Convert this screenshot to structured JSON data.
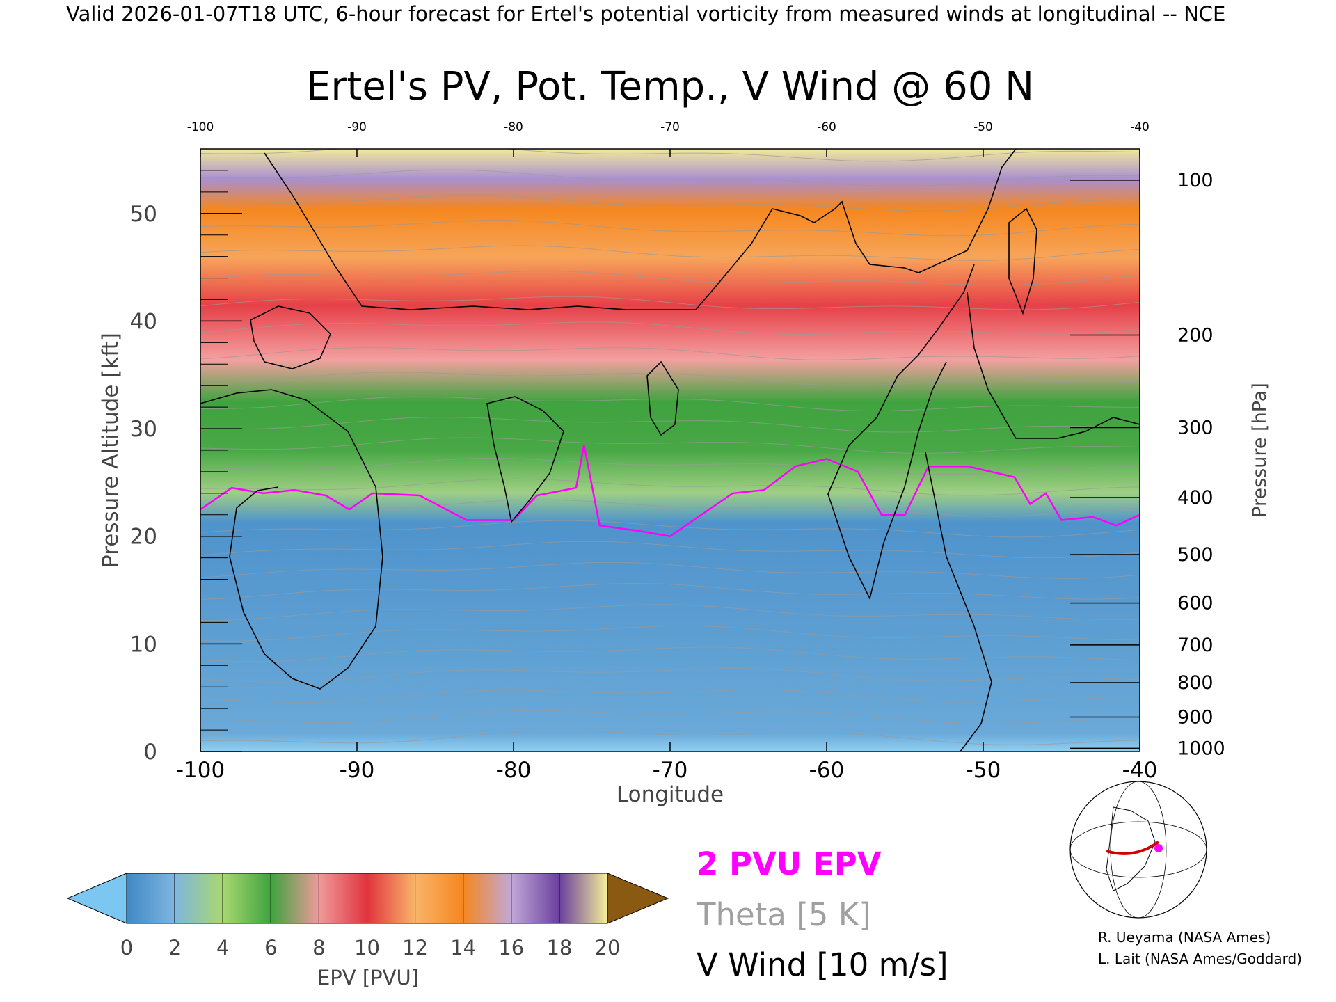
{
  "header": {
    "valid_line": "Valid 2026-01-07T18 UTC, 6-hour forecast for Ertel's potential vorticity from measured winds at longitudinal -- NCE"
  },
  "chart_data": {
    "type": "heatmap",
    "title": "Ertel's PV, Pot. Temp., V Wind @ 60 N",
    "xlabel": "Longitude",
    "ylabel": "Pressure Altitude [kft]",
    "ylabel_right": "Pressure [hPa]",
    "xlim": [
      -100,
      -40
    ],
    "ylim": [
      0,
      56
    ],
    "x_ticks": [
      "-100",
      "-90",
      "-80",
      "-70",
      "-60",
      "-50",
      "-40"
    ],
    "x_ticks_top": [
      "-100",
      "-90",
      "-80",
      "-70",
      "-60",
      "-50",
      "-40"
    ],
    "y_ticks": [
      "0",
      "10",
      "20",
      "30",
      "40",
      "50"
    ],
    "pressure_ticks": [
      {
        "label": "100",
        "kft": 53.1
      },
      {
        "label": "200",
        "kft": 38.7
      },
      {
        "label": "300",
        "kft": 30.1
      },
      {
        "label": "400",
        "kft": 23.6
      },
      {
        "label": "500",
        "kft": 18.3
      },
      {
        "label": "600",
        "kft": 13.8
      },
      {
        "label": "700",
        "kft": 9.9
      },
      {
        "label": "800",
        "kft": 6.4
      },
      {
        "label": "900",
        "kft": 3.2
      },
      {
        "label": "1000",
        "kft": 0.3
      }
    ],
    "pv_2pvu_line": [
      [
        -100,
        22.5
      ],
      [
        -98,
        24.5
      ],
      [
        -96,
        24.0
      ],
      [
        -94,
        24.3
      ],
      [
        -92,
        23.8
      ],
      [
        -90.5,
        22.5
      ],
      [
        -89,
        24.0
      ],
      [
        -86,
        23.8
      ],
      [
        -83,
        21.5
      ],
      [
        -80,
        21.5
      ],
      [
        -78.5,
        23.8
      ],
      [
        -76,
        24.5
      ],
      [
        -75.5,
        28.5
      ],
      [
        -74.5,
        21.0
      ],
      [
        -72,
        20.5
      ],
      [
        -70,
        20.0
      ],
      [
        -68,
        22.0
      ],
      [
        -66,
        24.0
      ],
      [
        -64,
        24.3
      ],
      [
        -62,
        26.5
      ],
      [
        -60,
        27.2
      ],
      [
        -58,
        26.0
      ],
      [
        -56.5,
        22.0
      ],
      [
        -55,
        22.0
      ],
      [
        -53.5,
        26.5
      ],
      [
        -51,
        26.5
      ],
      [
        -48,
        25.5
      ],
      [
        -47,
        23.0
      ],
      [
        -46,
        24.0
      ],
      [
        -45,
        21.5
      ],
      [
        -43,
        21.8
      ],
      [
        -41.5,
        21.0
      ],
      [
        -40,
        22.0
      ]
    ],
    "colorbar": {
      "label": "EPV [PVU]",
      "ticks": [
        "0",
        "2",
        "4",
        "6",
        "8",
        "10",
        "12",
        "14",
        "16",
        "18",
        "20"
      ],
      "colors": [
        "#3f88c5",
        "#7fb6df",
        "#a8d870",
        "#3fa33f",
        "#ef9a9a",
        "#e0343e",
        "#f9b46a",
        "#f5871f",
        "#c1a8d8",
        "#6a3f9e",
        "#f6ef9a"
      ],
      "under_color": "#7cc6f2",
      "over_color": "#8a5a12"
    },
    "legend": {
      "pv_line": "2 PVU EPV",
      "theta": "Theta [5 K]",
      "v_wind": "V Wind [10 m/s]",
      "pv_color": "#ff00ff",
      "theta_color": "#a0a0a0",
      "wind_color": "#000000"
    }
  },
  "credits": {
    "line1": "R. Ueyama (NASA Ames)",
    "line2": "L. Lait (NASA Ames/Goddard)"
  }
}
